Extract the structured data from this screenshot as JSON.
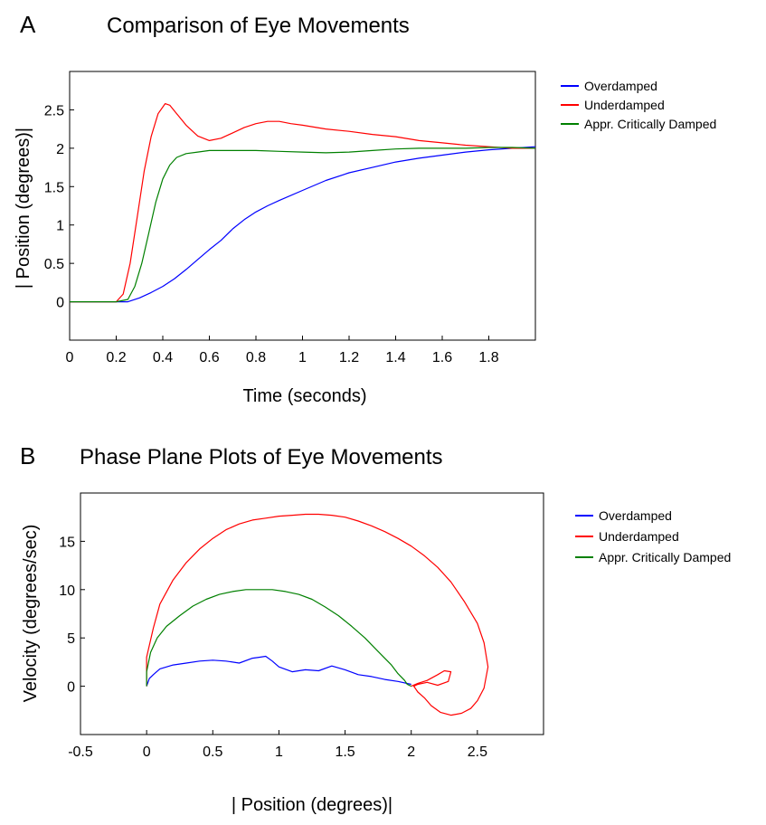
{
  "chart_data": [
    {
      "panel_label": "A",
      "type": "line",
      "title": "Comparison of Eye Movements",
      "xlabel": "Time (seconds)",
      "ylabel": "| Position (degrees)|",
      "xlim": [
        0,
        2.0
      ],
      "ylim": [
        -0.5,
        3.0
      ],
      "xticks": [
        0,
        0.2,
        0.4,
        0.6,
        0.8,
        1,
        1.2,
        1.4,
        1.6,
        1.8
      ],
      "xtick_labels": [
        "0",
        "0.2",
        "0.4",
        "0.6",
        "0.8",
        "1",
        "1.2",
        "1.4",
        "1.6",
        "1.8"
      ],
      "yticks": [
        0,
        0.5,
        1,
        1.5,
        2,
        2.5
      ],
      "ytick_labels": [
        "0",
        "0.5",
        "1",
        "1.5",
        "2",
        "2.5"
      ],
      "grid": false,
      "legend_position": "outside-top-right",
      "series": [
        {
          "name": "Overdamped",
          "color": "#0000ff",
          "x": [
            0,
            0.1,
            0.2,
            0.25,
            0.3,
            0.35,
            0.4,
            0.45,
            0.5,
            0.55,
            0.6,
            0.65,
            0.7,
            0.75,
            0.8,
            0.85,
            0.9,
            1.0,
            1.1,
            1.2,
            1.3,
            1.4,
            1.5,
            1.6,
            1.7,
            1.8,
            1.9,
            2.0
          ],
          "y": [
            0,
            0,
            0,
            0,
            0.05,
            0.12,
            0.2,
            0.3,
            0.42,
            0.55,
            0.68,
            0.8,
            0.95,
            1.07,
            1.17,
            1.25,
            1.32,
            1.45,
            1.58,
            1.68,
            1.75,
            1.82,
            1.87,
            1.91,
            1.95,
            1.98,
            2.0,
            2.02
          ]
        },
        {
          "name": "Underdamped",
          "color": "#ff0000",
          "x": [
            0,
            0.1,
            0.2,
            0.23,
            0.26,
            0.29,
            0.32,
            0.35,
            0.38,
            0.41,
            0.43,
            0.46,
            0.5,
            0.55,
            0.6,
            0.65,
            0.7,
            0.75,
            0.8,
            0.85,
            0.9,
            0.95,
            1.0,
            1.1,
            1.2,
            1.3,
            1.4,
            1.5,
            1.6,
            1.7,
            1.8,
            1.9,
            2.0
          ],
          "y": [
            0,
            0,
            0,
            0.1,
            0.5,
            1.1,
            1.7,
            2.15,
            2.45,
            2.58,
            2.56,
            2.45,
            2.3,
            2.16,
            2.1,
            2.13,
            2.2,
            2.27,
            2.32,
            2.35,
            2.35,
            2.32,
            2.3,
            2.25,
            2.22,
            2.18,
            2.15,
            2.1,
            2.07,
            2.04,
            2.02,
            2.0,
            2.0
          ]
        },
        {
          "name": "Appr. Critically Damped",
          "color": "#008000",
          "x": [
            0,
            0.1,
            0.2,
            0.25,
            0.28,
            0.31,
            0.34,
            0.37,
            0.4,
            0.43,
            0.46,
            0.5,
            0.55,
            0.6,
            0.7,
            0.8,
            0.9,
            1.0,
            1.1,
            1.2,
            1.3,
            1.4,
            1.5,
            1.6,
            1.7,
            1.8,
            1.9,
            2.0
          ],
          "y": [
            0,
            0,
            0,
            0.03,
            0.2,
            0.5,
            0.9,
            1.3,
            1.6,
            1.78,
            1.88,
            1.93,
            1.95,
            1.97,
            1.97,
            1.97,
            1.96,
            1.95,
            1.94,
            1.95,
            1.97,
            1.99,
            2.0,
            2.0,
            2.0,
            2.01,
            2.01,
            2.0
          ]
        }
      ]
    },
    {
      "panel_label": "B",
      "type": "line",
      "title": "Phase Plane Plots of Eye Movements",
      "xlabel": "| Position (degrees)|",
      "ylabel": "Velocity (degrees/sec)",
      "xlim": [
        -0.5,
        3.0
      ],
      "ylim": [
        -5,
        20
      ],
      "xticks": [
        -0.5,
        0,
        0.5,
        1,
        1.5,
        2,
        2.5
      ],
      "xtick_labels": [
        "-0.5",
        "0",
        "0.5",
        "1",
        "1.5",
        "2",
        "2.5"
      ],
      "yticks": [
        0,
        5,
        10,
        15
      ],
      "ytick_labels": [
        "0",
        "5",
        "10",
        "15"
      ],
      "grid": false,
      "legend_position": "outside-top-right",
      "series": [
        {
          "name": "Overdamped",
          "color": "#0000ff",
          "x": [
            0,
            0.02,
            0.05,
            0.1,
            0.2,
            0.3,
            0.4,
            0.5,
            0.6,
            0.7,
            0.8,
            0.85,
            0.9,
            0.95,
            1.0,
            1.1,
            1.2,
            1.3,
            1.4,
            1.5,
            1.6,
            1.7,
            1.8,
            1.9,
            2.0
          ],
          "y": [
            0,
            0.8,
            1.2,
            1.8,
            2.2,
            2.4,
            2.6,
            2.7,
            2.6,
            2.4,
            2.9,
            3.0,
            3.1,
            2.6,
            2.0,
            1.5,
            1.7,
            1.6,
            2.1,
            1.7,
            1.2,
            1.0,
            0.7,
            0.5,
            0.2
          ]
        },
        {
          "name": "Underdamped",
          "color": "#ff0000",
          "x": [
            0,
            0.0,
            0.05,
            0.1,
            0.2,
            0.3,
            0.4,
            0.5,
            0.6,
            0.7,
            0.8,
            0.9,
            1.0,
            1.1,
            1.2,
            1.3,
            1.4,
            1.5,
            1.6,
            1.7,
            1.8,
            1.9,
            2.0,
            2.1,
            2.2,
            2.3,
            2.4,
            2.5,
            2.55,
            2.58,
            2.55,
            2.5,
            2.45,
            2.38,
            2.3,
            2.22,
            2.15,
            2.1,
            2.05,
            2.02,
            2.05,
            2.12,
            2.2,
            2.28,
            2.3,
            2.25,
            2.2,
            2.12,
            2.05,
            2.0
          ],
          "y": [
            0,
            3.0,
            6.0,
            8.5,
            11.0,
            12.8,
            14.2,
            15.3,
            16.2,
            16.8,
            17.2,
            17.4,
            17.6,
            17.7,
            17.8,
            17.8,
            17.7,
            17.5,
            17.1,
            16.6,
            16.0,
            15.3,
            14.5,
            13.5,
            12.3,
            10.8,
            8.8,
            6.5,
            4.5,
            2.0,
            -0.2,
            -1.5,
            -2.3,
            -2.8,
            -3.0,
            -2.7,
            -2.0,
            -1.2,
            -0.6,
            0.0,
            0.2,
            0.4,
            0.1,
            0.5,
            1.5,
            1.6,
            1.2,
            0.6,
            0.3,
            0.0
          ]
        },
        {
          "name": "Appr. Critically Damped",
          "color": "#008000",
          "x": [
            0,
            0.0,
            0.03,
            0.08,
            0.15,
            0.25,
            0.35,
            0.45,
            0.55,
            0.65,
            0.75,
            0.85,
            0.95,
            1.05,
            1.15,
            1.25,
            1.35,
            1.45,
            1.55,
            1.65,
            1.75,
            1.85,
            1.9,
            1.95,
            1.97,
            2.0
          ],
          "y": [
            0,
            1.5,
            3.5,
            5.0,
            6.2,
            7.3,
            8.3,
            9.0,
            9.5,
            9.8,
            10.0,
            10.0,
            10.0,
            9.8,
            9.5,
            9.0,
            8.2,
            7.3,
            6.2,
            5.0,
            3.6,
            2.2,
            1.3,
            0.6,
            0.2,
            0.0
          ]
        }
      ]
    }
  ]
}
